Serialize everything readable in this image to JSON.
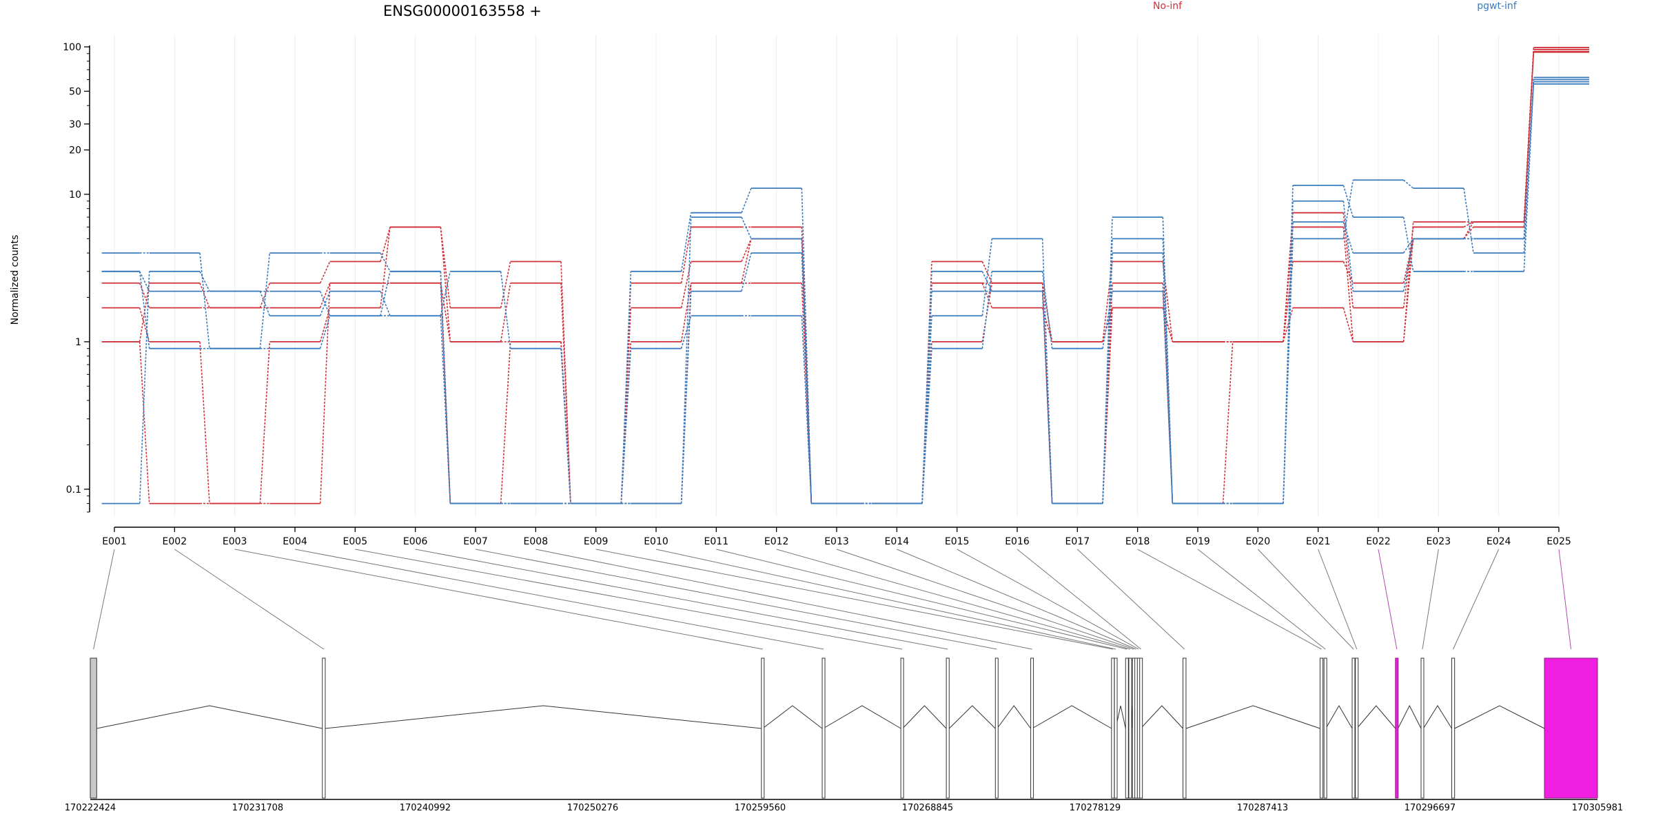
{
  "chart_data": {
    "type": "line",
    "title": "ENSG00000163558 +",
    "ylabel": "Normalized counts",
    "y_scale": "log",
    "ylim": [
      0.07,
      100
    ],
    "y_ticks": [
      {
        "value": 0.1,
        "label": "0.1"
      },
      {
        "value": 1,
        "label": "1"
      },
      {
        "value": 10,
        "label": "10"
      },
      {
        "value": 20,
        "label": "20"
      },
      {
        "value": 30,
        "label": "30"
      },
      {
        "value": 50,
        "label": "50"
      },
      {
        "value": 100,
        "label": "100"
      }
    ],
    "categories": [
      "E001",
      "E002",
      "E003",
      "E004",
      "E005",
      "E006",
      "E007",
      "E008",
      "E009",
      "E010",
      "E011",
      "E012",
      "E013",
      "E014",
      "E015",
      "E016",
      "E017",
      "E018",
      "E019",
      "E020",
      "E021",
      "E022",
      "E023",
      "E024",
      "E025"
    ],
    "legend": [
      {
        "name": "No-inf",
        "color": "#d0323a"
      },
      {
        "name": "pgwt-inf",
        "color": "#3a7bbd"
      }
    ],
    "series": [
      {
        "group": "No-inf",
        "color": "#d0323a",
        "values": [
          1.7,
          1.0,
          0.08,
          1.0,
          1.7,
          6.0,
          1.0,
          2.5,
          0.08,
          1.7,
          3.5,
          5.0,
          0.08,
          0.08,
          3.5,
          2.5,
          0.08,
          2.5,
          0.08,
          1.0,
          1.7,
          1.0,
          5.0,
          6.0,
          93
        ]
      },
      {
        "group": "No-inf",
        "color": "#d0323a",
        "values": [
          2.5,
          1.7,
          1.7,
          2.5,
          3.5,
          6.0,
          1.7,
          3.5,
          0.08,
          2.5,
          6.0,
          6.0,
          0.08,
          0.08,
          2.5,
          1.7,
          1.0,
          3.5,
          1.0,
          1.0,
          7.5,
          1.7,
          6.0,
          6.5,
          96
        ]
      },
      {
        "group": "No-inf",
        "color": "#d0323a",
        "values": [
          1.0,
          0.08,
          0.08,
          0.08,
          2.5,
          2.5,
          0.08,
          1.0,
          0.08,
          0.08,
          2.5,
          2.5,
          0.08,
          0.08,
          1.0,
          2.5,
          0.08,
          1.7,
          1.0,
          1.0,
          3.5,
          2.5,
          5.0,
          6.5,
          92
        ]
      },
      {
        "group": "No-inf",
        "color": "#d0323a",
        "values": [
          1.0,
          2.5,
          1.7,
          1.7,
          2.5,
          2.5,
          1.0,
          1.0,
          0.08,
          1.0,
          2.5,
          5.0,
          0.08,
          0.08,
          2.5,
          2.5,
          1.0,
          1.7,
          1.0,
          1.0,
          6.0,
          1.0,
          6.5,
          6.5,
          99
        ]
      },
      {
        "group": "pgwt-inf",
        "color": "#3a7bbd",
        "values": [
          3.0,
          2.2,
          2.2,
          1.5,
          2.2,
          1.5,
          3.0,
          0.9,
          0.08,
          3.0,
          7.5,
          11,
          0.08,
          0.08,
          3.0,
          2.2,
          0.08,
          7.0,
          0.08,
          0.08,
          11.5,
          7.0,
          3.0,
          3.0,
          58
        ]
      },
      {
        "group": "pgwt-inf",
        "color": "#3a7bbd",
        "values": [
          4.0,
          4.0,
          0.9,
          4.0,
          4.0,
          3.0,
          0.08,
          0.08,
          0.08,
          0.9,
          1.5,
          1.5,
          0.08,
          0.08,
          0.9,
          3.0,
          0.9,
          2.2,
          0.08,
          0.08,
          5.0,
          12.5,
          11,
          4.0,
          62
        ]
      },
      {
        "group": "pgwt-inf",
        "color": "#3a7bbd",
        "values": [
          0.08,
          3.0,
          2.2,
          2.2,
          1.5,
          1.5,
          0.08,
          0.08,
          0.08,
          0.08,
          2.2,
          4.0,
          0.08,
          0.08,
          1.5,
          5.0,
          0.08,
          4.0,
          0.08,
          0.08,
          6.5,
          4.0,
          5.0,
          5.0,
          60
        ]
      },
      {
        "group": "pgwt-inf",
        "color": "#3a7bbd",
        "values": [
          3.0,
          0.9,
          0.9,
          0.9,
          1.5,
          3.0,
          0.08,
          0.08,
          0.08,
          0.08,
          7.0,
          5.0,
          0.08,
          0.08,
          2.2,
          2.2,
          0.08,
          5.0,
          0.08,
          0.08,
          9.0,
          2.2,
          5.0,
          5.0,
          56
        ]
      }
    ],
    "gene_model": {
      "coordinate_ticks": [
        "170222424",
        "170231708",
        "170240992",
        "170250276",
        "170259560",
        "170268845",
        "170278129",
        "170287413",
        "170296697",
        "170305981"
      ],
      "coord_start": 170222424,
      "coord_end": 170305981,
      "highlight_color": "#f01fe0",
      "exons": [
        {
          "id": "E001",
          "start": 170222424,
          "end": 170222780,
          "highlight": false,
          "filled": true
        },
        {
          "id": "E002",
          "start": 170235290,
          "end": 170235450,
          "highlight": false,
          "filled": false
        },
        {
          "id": "E003",
          "start": 170259630,
          "end": 170259700,
          "highlight": false,
          "filled": false
        },
        {
          "id": "E004",
          "start": 170263000,
          "end": 170263060,
          "highlight": false,
          "filled": false
        },
        {
          "id": "E005",
          "start": 170267360,
          "end": 170267460,
          "highlight": false,
          "filled": false
        },
        {
          "id": "E006",
          "start": 170269880,
          "end": 170270040,
          "highlight": false,
          "filled": false
        },
        {
          "id": "E007",
          "start": 170272600,
          "end": 170272700,
          "highlight": false,
          "filled": false
        },
        {
          "id": "E008",
          "start": 170274560,
          "end": 170274640,
          "highlight": false,
          "filled": false
        },
        {
          "id": "E009",
          "start": 170279040,
          "end": 170279120,
          "highlight": false,
          "filled": false
        },
        {
          "id": "E010",
          "start": 170279200,
          "end": 170279270,
          "highlight": false,
          "filled": false
        },
        {
          "id": "E011",
          "start": 170279820,
          "end": 170279880,
          "highlight": false,
          "filled": false
        },
        {
          "id": "E012",
          "start": 170280000,
          "end": 170280120,
          "highlight": false,
          "filled": false
        },
        {
          "id": "E013",
          "start": 170280200,
          "end": 170280250,
          "highlight": false,
          "filled": false
        },
        {
          "id": "E014",
          "start": 170280330,
          "end": 170280400,
          "highlight": false,
          "filled": false
        },
        {
          "id": "E015",
          "start": 170280470,
          "end": 170280530,
          "highlight": false,
          "filled": false
        },
        {
          "id": "E016",
          "start": 170280600,
          "end": 170280660,
          "highlight": false,
          "filled": false
        },
        {
          "id": "E017",
          "start": 170283000,
          "end": 170283170,
          "highlight": false,
          "filled": false
        },
        {
          "id": "E018",
          "start": 170290600,
          "end": 170290760,
          "highlight": false,
          "filled": false
        },
        {
          "id": "E019",
          "start": 170290820,
          "end": 170290920,
          "highlight": false,
          "filled": false
        },
        {
          "id": "E020",
          "start": 170292380,
          "end": 170292460,
          "highlight": false,
          "filled": false
        },
        {
          "id": "E021",
          "start": 170292560,
          "end": 170292640,
          "highlight": false,
          "filled": false
        },
        {
          "id": "E022",
          "start": 170294780,
          "end": 170294920,
          "highlight": true,
          "filled": true
        },
        {
          "id": "E023",
          "start": 170296200,
          "end": 170296330,
          "highlight": false,
          "filled": false
        },
        {
          "id": "E024",
          "start": 170297900,
          "end": 170298060,
          "highlight": false,
          "filled": false
        },
        {
          "id": "E025",
          "start": 170303040,
          "end": 170305981,
          "highlight": true,
          "filled": true
        }
      ]
    }
  }
}
